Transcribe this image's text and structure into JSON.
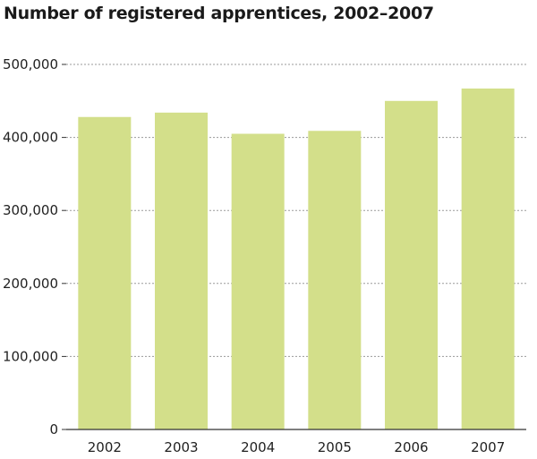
{
  "chart_data": {
    "type": "bar",
    "title": "Number of registered apprentices, 2002–2007",
    "xlabel": "",
    "ylabel": "",
    "categories": [
      "2002",
      "2003",
      "2004",
      "2005",
      "2006",
      "2007"
    ],
    "values": [
      428000,
      434000,
      405000,
      409000,
      450000,
      467000
    ],
    "ylim": [
      0,
      500000
    ],
    "yticks": [
      0,
      100000,
      200000,
      300000,
      400000,
      500000
    ],
    "ytick_labels": [
      "0",
      "100,000",
      "200,000",
      "300,000",
      "400,000",
      "500,000"
    ],
    "grid": "horizontal dashed",
    "legend": "none",
    "colors": {
      "bar": "#d3df8a",
      "grid": "#9a9a9a",
      "axis": "#333333",
      "text": "#222222"
    }
  }
}
